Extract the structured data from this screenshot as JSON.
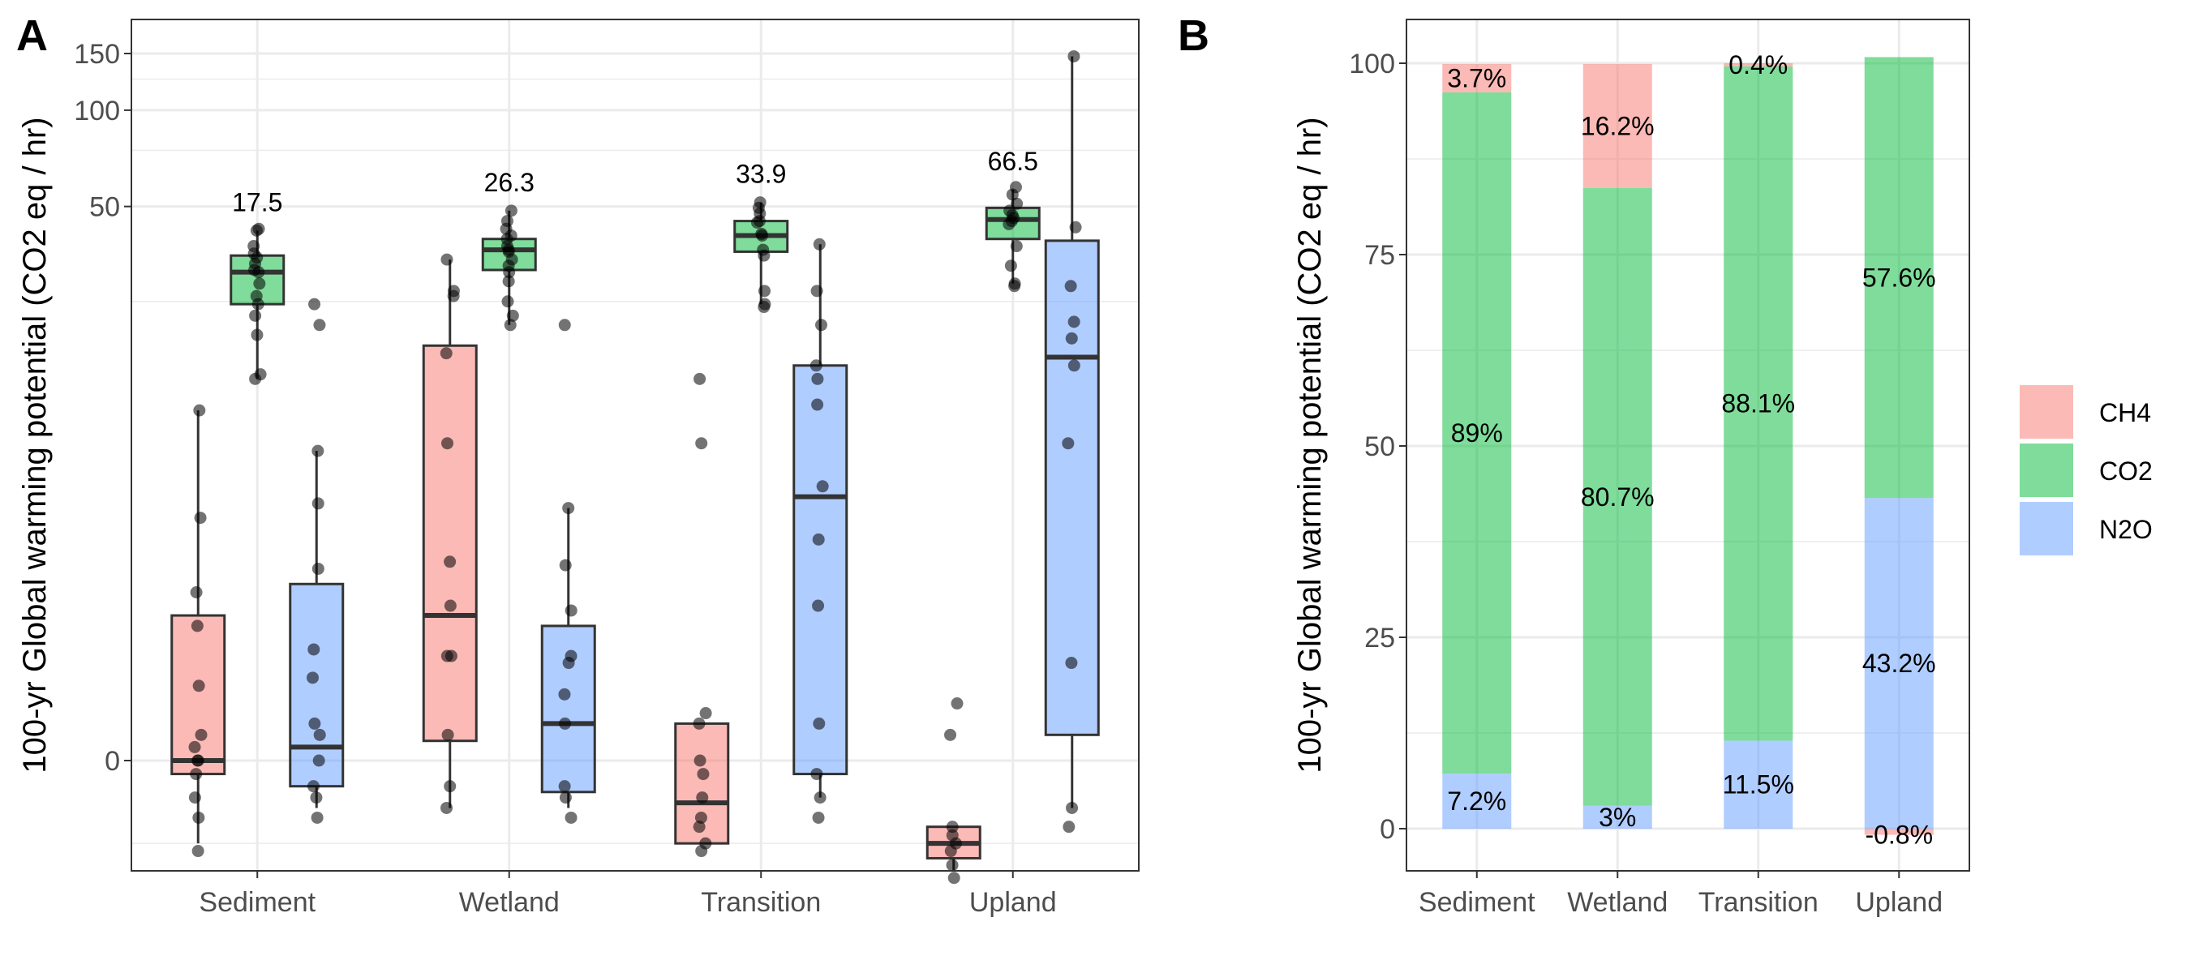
{
  "colors": {
    "CH4": "#F8766D",
    "CO2": "#00BA38",
    "N2O": "#619CFF"
  },
  "chart_data": [
    {
      "panel": "A",
      "type": "box",
      "ylabel": "100-yr Global warming potential (CO2 eq / hr)",
      "y_scale": "pseudo-log",
      "y_ticks": [
        0,
        50,
        100,
        150
      ],
      "categories": [
        "Sediment",
        "Wetland",
        "Transition",
        "Upland"
      ],
      "annotations": [
        {
          "category": "Sediment",
          "text": "17.5"
        },
        {
          "category": "Wetland",
          "text": "26.3"
        },
        {
          "category": "Transition",
          "text": "33.9"
        },
        {
          "category": "Upland",
          "text": "66.5"
        }
      ],
      "series": [
        {
          "name": "CH4",
          "boxes": [
            {
              "category": "Sediment",
              "min": -0.8,
              "q1": -0.1,
              "median": 0.0,
              "q3": 1.8,
              "max": 11.0,
              "points": [
                -0.9,
                -0.5,
                -0.3,
                -0.1,
                0.0,
                0.0,
                0.1,
                0.2,
                0.7,
                1.6,
                2.3,
                4.6,
                11.0
              ]
            },
            {
              "category": "Wetland",
              "min": -0.4,
              "q1": 0.15,
              "median": 1.8,
              "q3": 18.0,
              "max": 34.0,
              "points": [
                -0.4,
                -0.2,
                0.2,
                1.1,
                1.1,
                2.0,
                3.1,
                8.5,
                17.0,
                26.0,
                27.0,
                34.0
              ]
            },
            {
              "category": "Transition",
              "min": -0.8,
              "q1": -0.8,
              "median": -0.35,
              "q3": 0.3,
              "max": 0.3,
              "points": [
                -0.9,
                -0.8,
                -0.6,
                -0.5,
                -0.3,
                -0.1,
                0.0,
                0.3,
                0.4,
                8.5,
                14.0
              ]
            },
            {
              "category": "Upland",
              "min": -1.2,
              "q1": -1.0,
              "median": -0.8,
              "q3": -0.6,
              "max": -0.6,
              "points": [
                -1.3,
                -1.1,
                -0.9,
                -0.8,
                -0.7,
                -0.6,
                0.2,
                0.5
              ]
            }
          ]
        },
        {
          "name": "CO2",
          "boxes": [
            {
              "category": "Sediment",
              "min": 14.0,
              "q1": 24.5,
              "median": 31.0,
              "q3": 35.0,
              "max": 42.0,
              "points": [
                14.0,
                14.5,
                19.5,
                22.5,
                24.5,
                26.0,
                28.5,
                31.0,
                31.5,
                33.0,
                34.5,
                35.5,
                37.5,
                42.0,
                42.5
              ]
            },
            {
              "category": "Wetland",
              "min": 21.0,
              "q1": 31.5,
              "median": 36.5,
              "q3": 39.5,
              "max": 48.5,
              "points": [
                21.0,
                22.5,
                25.0,
                29.0,
                31.0,
                32.5,
                34.0,
                36.0,
                36.5,
                37.5,
                39.5,
                40.5,
                42.5,
                45.0,
                48.5
              ]
            },
            {
              "category": "Transition",
              "min": 24.5,
              "q1": 36.0,
              "median": 40.5,
              "q3": 45.0,
              "max": 51.5,
              "points": [
                24.0,
                24.5,
                27.0,
                35.0,
                36.5,
                40.5,
                41.0,
                44.5,
                45.0,
                47.5,
                49.5,
                51.5
              ]
            },
            {
              "category": "Upland",
              "min": 28.5,
              "q1": 39.5,
              "median": 45.5,
              "q3": 49.5,
              "max": 56.5,
              "points": [
                28.0,
                28.5,
                32.5,
                37.5,
                44.0,
                45.0,
                46.0,
                47.0,
                48.5,
                51.0,
                54.5,
                57.5
              ]
            }
          ]
        },
        {
          "name": "N2O",
          "boxes": [
            {
              "category": "Sediment",
              "min": -0.4,
              "q1": -0.2,
              "median": 0.1,
              "q3": 2.5,
              "max": 8.0,
              "points": [
                -0.5,
                -0.3,
                -0.2,
                0.0,
                0.2,
                0.3,
                0.8,
                1.2,
                2.9,
                5.2,
                8.0,
                21.0,
                24.5
              ]
            },
            {
              "category": "Wetland",
              "min": -0.4,
              "q1": -0.25,
              "median": 0.3,
              "q3": 1.6,
              "max": 5.0,
              "points": [
                -0.5,
                -0.3,
                -0.2,
                0.3,
                0.6,
                1.0,
                1.1,
                1.9,
                3.0,
                5.0,
                21.0
              ]
            },
            {
              "category": "Transition",
              "min": -0.3,
              "q1": -0.1,
              "median": 5.5,
              "q3": 15.5,
              "max": 38.0,
              "points": [
                -0.5,
                -0.3,
                -0.1,
                0.3,
                2.0,
                3.8,
                6.0,
                11.5,
                14.0,
                15.5,
                21.0,
                27.0,
                38.0
              ]
            },
            {
              "category": "Upland",
              "min": -0.4,
              "q1": 0.2,
              "median": 16.5,
              "q3": 39.0,
              "max": 147.0,
              "points": [
                -0.6,
                -0.4,
                1.0,
                8.5,
                15.5,
                19.0,
                21.5,
                28.0,
                43.0,
                147.0
              ]
            }
          ]
        }
      ]
    },
    {
      "panel": "B",
      "type": "stacked-bar",
      "ylabel": "100-yr Global warming potential (CO2 eq / hr)",
      "ylim": [
        -6,
        105
      ],
      "y_ticks": [
        0,
        25,
        50,
        75,
        100
      ],
      "categories": [
        "Sediment",
        "Wetland",
        "Transition",
        "Upland"
      ],
      "series": [
        {
          "name": "CH4",
          "values": [
            3.7,
            16.2,
            0.4,
            -0.8
          ],
          "labels": [
            "3.7%",
            "16.2%",
            "0.4%",
            "-0.8%"
          ]
        },
        {
          "name": "CO2",
          "values": [
            89,
            80.7,
            88.1,
            57.6
          ],
          "labels": [
            "89%",
            "80.7%",
            "88.1%",
            "57.6%"
          ]
        },
        {
          "name": "N2O",
          "values": [
            7.2,
            3,
            11.5,
            43.2
          ],
          "labels": [
            "7.2%",
            "3%",
            "11.5%",
            "43.2%"
          ]
        }
      ],
      "legend": {
        "position": "right",
        "entries": [
          "CH4",
          "CO2",
          "N2O"
        ]
      }
    }
  ]
}
